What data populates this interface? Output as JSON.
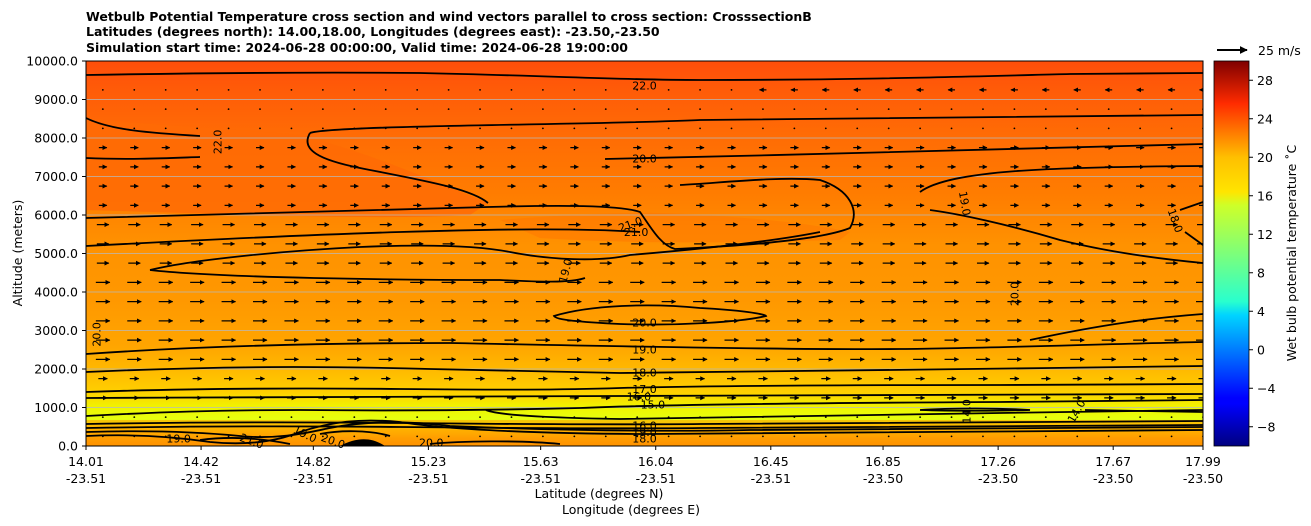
{
  "title_lines": [
    "Wetbulb Potential Temperature cross section and wind vectors parallel to cross section: CrosssectionB",
    "Latitudes (degrees north): 14.00,18.00, Longitudes (degrees east): -23.50,-23.50",
    "Simulation start time: 2024-06-28 00:00:00, Valid time: 2024-06-28 19:00:00"
  ],
  "chart_data": {
    "type": "heatmap",
    "title": "Wetbulb Potential Temperature cross section and wind vectors parallel to cross section: CrosssectionB",
    "ylabel": "Altitude (meters)",
    "xlabel": "Latitude (degrees N)",
    "xlabel2": "Longitude (degrees E)",
    "ylim": [
      0,
      10000
    ],
    "xlim": [
      14.01,
      17.99
    ],
    "y_ticks": [
      "0.0",
      "1000.0",
      "2000.0",
      "3000.0",
      "4000.0",
      "5000.0",
      "6000.0",
      "7000.0",
      "8000.0",
      "9000.0",
      "10000.0"
    ],
    "y_values": [
      0,
      1000,
      2000,
      3000,
      4000,
      5000,
      6000,
      7000,
      8000,
      9000,
      10000
    ],
    "x_ticks": [
      {
        "lat": "14.01",
        "lon": "-23.51",
        "x": 14.01
      },
      {
        "lat": "14.42",
        "lon": "-23.51",
        "x": 14.42
      },
      {
        "lat": "14.82",
        "lon": "-23.51",
        "x": 14.82
      },
      {
        "lat": "15.23",
        "lon": "-23.51",
        "x": 15.23
      },
      {
        "lat": "15.63",
        "lon": "-23.51",
        "x": 15.63
      },
      {
        "lat": "16.04",
        "lon": "-23.51",
        "x": 16.04
      },
      {
        "lat": "16.45",
        "lon": "-23.51",
        "x": 16.45
      },
      {
        "lat": "16.85",
        "lon": "-23.50",
        "x": 16.85
      },
      {
        "lat": "17.26",
        "lon": "-23.50",
        "x": 17.26
      },
      {
        "lat": "17.67",
        "lon": "-23.50",
        "x": 17.67
      },
      {
        "lat": "17.99",
        "lon": "-23.50",
        "x": 17.99
      }
    ],
    "colorbar": {
      "label": "Wet bulb potential temperature ˚C",
      "min": -10,
      "max": 30,
      "ticks": [
        -8,
        -4,
        0,
        4,
        8,
        12,
        16,
        20,
        24,
        28
      ],
      "tick_labels": [
        "−8",
        "−4",
        "0",
        "4",
        "8",
        "12",
        "16",
        "20",
        "24",
        "28"
      ]
    },
    "wind_key": {
      "label": "25 m/s",
      "value": 25
    },
    "contour_labels": [
      {
        "text": "22.0",
        "x": 16.0,
        "y": 9350,
        "rot": 0
      },
      {
        "text": "22.0",
        "x": 14.48,
        "y": 7900,
        "rot": -90
      },
      {
        "text": "20.0",
        "x": 16.0,
        "y": 7450,
        "rot": 0
      },
      {
        "text": "19.0",
        "x": 17.14,
        "y": 6300,
        "rot": 80
      },
      {
        "text": "18.0",
        "x": 17.89,
        "y": 5850,
        "rot": 70
      },
      {
        "text": "21.0",
        "x": 15.95,
        "y": 5750,
        "rot": -20
      },
      {
        "text": "21.0",
        "x": 15.97,
        "y": 5550,
        "rot": 0
      },
      {
        "text": "19.0",
        "x": 15.72,
        "y": 4550,
        "rot": -75
      },
      {
        "text": "20.0",
        "x": 17.32,
        "y": 3950,
        "rot": -90
      },
      {
        "text": "20.0",
        "x": 14.05,
        "y": 2900,
        "rot": -90
      },
      {
        "text": "20.0",
        "x": 16.0,
        "y": 3200,
        "rot": 0
      },
      {
        "text": "19.0",
        "x": 16.0,
        "y": 2500,
        "rot": 0
      },
      {
        "text": "18.0",
        "x": 16.0,
        "y": 1900,
        "rot": 0
      },
      {
        "text": "17.0",
        "x": 16.0,
        "y": 1470,
        "rot": 0
      },
      {
        "text": "16.0",
        "x": 15.98,
        "y": 1270,
        "rot": 0
      },
      {
        "text": "15.0",
        "x": 16.03,
        "y": 1070,
        "rot": 0
      },
      {
        "text": "14.0",
        "x": 17.15,
        "y": 900,
        "rot": -90
      },
      {
        "text": "14.0",
        "x": 17.54,
        "y": 900,
        "rot": -60
      },
      {
        "text": "19.0",
        "x": 14.34,
        "y": 180,
        "rot": 0
      },
      {
        "text": "21.0",
        "x": 14.6,
        "y": 120,
        "rot": 20
      },
      {
        "text": "19.0",
        "x": 14.79,
        "y": 300,
        "rot": 25
      },
      {
        "text": "20.0",
        "x": 14.89,
        "y": 120,
        "rot": 20
      },
      {
        "text": "20.0",
        "x": 15.24,
        "y": 80,
        "rot": 0
      },
      {
        "text": "19.0",
        "x": 16.0,
        "y": 350,
        "rot": 0
      },
      {
        "text": "18.0",
        "x": 16.0,
        "y": 180,
        "rot": 0
      },
      {
        "text": "16.0",
        "x": 16.0,
        "y": 520,
        "rot": 0
      }
    ]
  }
}
